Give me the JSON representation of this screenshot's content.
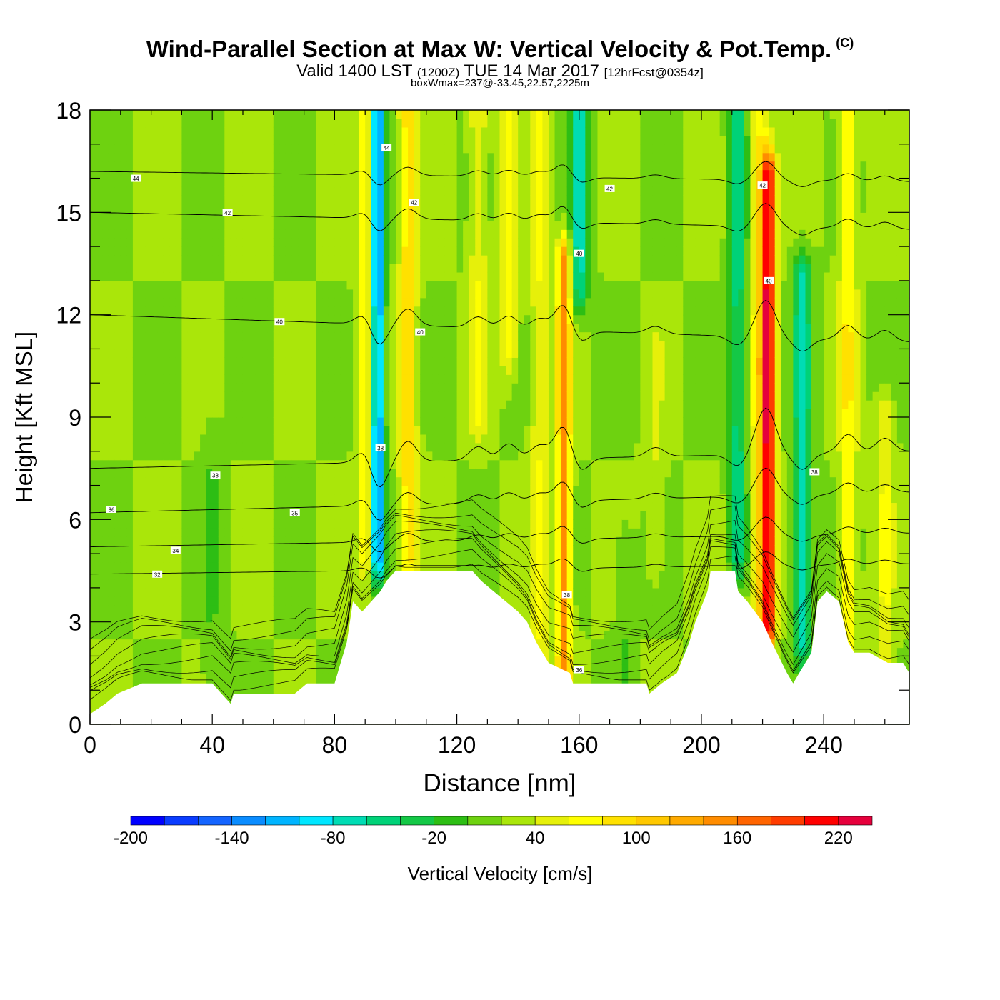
{
  "header": {
    "title": "Wind-Parallel Section at Max W: Vertical Velocity & Pot.Temp.",
    "copyright": "(C)",
    "subtitle_main": "Valid 1400 LST",
    "subtitle_utc": "(1200Z)",
    "subtitle_date": "TUE 14 Mar 2017",
    "subtitle_fcst": "[12hrFcst@0354z]",
    "note": "boxWmax=237@-33.45,22.57,2225m"
  },
  "colors": {
    "terrain": "#ffffff",
    "contour": "#000000",
    "frame": "#000000"
  },
  "chart_data": {
    "type": "heatmap",
    "title": "Wind-Parallel Section at Max W: Vertical Velocity & Pot.Temp.",
    "xlabel": "Distance [nm]",
    "ylabel": "Height [Kft MSL]",
    "xlim": [
      0,
      268
    ],
    "ylim": [
      0,
      18
    ],
    "x_ticks": [
      0,
      40,
      80,
      120,
      160,
      200,
      240
    ],
    "y_ticks": [
      0,
      3,
      6,
      9,
      12,
      15,
      18
    ],
    "background_w": 20,
    "bands": [
      {
        "x": 94,
        "w": -140,
        "zlow": 5.0,
        "zhigh": 18
      },
      {
        "x": 90.5,
        "w": 80,
        "zlow": 5.0,
        "zhigh": 18
      },
      {
        "x": 104,
        "w": 90,
        "zlow": 5.0,
        "zhigh": 18
      },
      {
        "x": 127,
        "w": 60,
        "zlow": 9.0,
        "zhigh": 18
      },
      {
        "x": 137,
        "w": 70,
        "zlow": 11.0,
        "zhigh": 18
      },
      {
        "x": 160,
        "w": -70,
        "zlow": 13.0,
        "zhigh": 18
      },
      {
        "x": 155,
        "w": 150,
        "zlow": 1.5,
        "zhigh": 13.5
      },
      {
        "x": 147,
        "w": 60,
        "zlow": 2.0,
        "zhigh": 18
      },
      {
        "x": 212,
        "w": -50,
        "zlow": 5.0,
        "zhigh": 18
      },
      {
        "x": 222,
        "w": 220,
        "zlow": 3.0,
        "zhigh": 16
      },
      {
        "x": 219,
        "w": 80,
        "zlow": 3.0,
        "zhigh": 18
      },
      {
        "x": 233,
        "w": -70,
        "zlow": 2.5,
        "zhigh": 13
      },
      {
        "x": 248,
        "w": 80,
        "zlow": 2.5,
        "zhigh": 18
      },
      {
        "x": 260,
        "w": 60,
        "zlow": 2.0,
        "zhigh": 9
      },
      {
        "x": 40,
        "w": 0,
        "zlow": 1.0,
        "zhigh": 8
      },
      {
        "x": 185,
        "w": 40,
        "zlow": 5.0,
        "zhigh": 11
      },
      {
        "x": 175,
        "w": 0,
        "zlow": 1.5,
        "zhigh": 5
      }
    ],
    "terrain": [
      [
        0,
        0.3
      ],
      [
        5,
        0.6
      ],
      [
        9,
        0.9
      ],
      [
        17,
        1.2
      ],
      [
        40,
        1.2
      ],
      [
        46,
        0.6
      ],
      [
        47,
        0.9
      ],
      [
        67,
        0.9
      ],
      [
        71,
        1.2
      ],
      [
        80,
        1.2
      ],
      [
        81,
        1.5
      ],
      [
        82,
        1.8
      ],
      [
        84,
        2.4
      ],
      [
        85,
        3.0
      ],
      [
        86,
        3.6
      ],
      [
        89,
        3.3
      ],
      [
        95,
        3.9
      ],
      [
        97,
        4.2
      ],
      [
        100,
        4.5
      ],
      [
        125,
        4.5
      ],
      [
        128,
        4.2
      ],
      [
        132,
        3.9
      ],
      [
        136,
        3.6
      ],
      [
        140,
        3.3
      ],
      [
        143,
        3.0
      ],
      [
        146,
        2.4
      ],
      [
        150,
        1.8
      ],
      [
        157,
        1.5
      ],
      [
        158,
        1.2
      ],
      [
        182,
        1.2
      ],
      [
        183,
        0.9
      ],
      [
        187,
        1.2
      ],
      [
        192,
        1.5
      ],
      [
        196,
        2.4
      ],
      [
        198,
        3.0
      ],
      [
        202,
        3.9
      ],
      [
        203,
        4.5
      ],
      [
        211,
        4.5
      ],
      [
        212,
        3.9
      ],
      [
        215,
        3.6
      ],
      [
        220,
        3.0
      ],
      [
        223,
        2.4
      ],
      [
        228,
        1.5
      ],
      [
        230,
        1.2
      ],
      [
        232,
        1.5
      ],
      [
        236,
        2.1
      ],
      [
        238,
        3.6
      ],
      [
        241,
        3.9
      ],
      [
        245,
        3.6
      ],
      [
        248,
        2.4
      ],
      [
        250,
        2.1
      ],
      [
        255,
        2.1
      ],
      [
        261,
        1.8
      ],
      [
        266,
        1.8
      ],
      [
        268,
        1.5
      ]
    ],
    "isentropes": [
      {
        "label": "44",
        "label_x": 15,
        "base": 16.2,
        "slope": -0.3,
        "bump": 0.4
      },
      {
        "label": "42",
        "label_x": 45,
        "base": 15.0,
        "slope": -0.5,
        "bump": 0.5
      },
      {
        "label": "40",
        "label_x": 62,
        "base": 12.0,
        "slope": -0.8,
        "bump": 0.8
      },
      {
        "label": "38",
        "label_x": 41,
        "base": 7.5,
        "slope": 0.5,
        "bump": 1.0
      },
      {
        "label": "36",
        "label_x": 7,
        "base": 6.2,
        "slope": 0.6,
        "bump": 0.6
      },
      {
        "label": "34",
        "label_x": 28,
        "base": 5.2,
        "slope": 0.4,
        "bump": 0.4
      },
      {
        "label": "32",
        "label_x": 22,
        "base": 4.4,
        "slope": 0.3,
        "bump": 0.3
      }
    ],
    "contour_labels": [
      {
        "text": "44",
        "x": 15,
        "y": 16.0
      },
      {
        "text": "42",
        "x": 45,
        "y": 15.0
      },
      {
        "text": "40",
        "x": 62,
        "y": 11.8
      },
      {
        "text": "38",
        "x": 41,
        "y": 7.3
      },
      {
        "text": "36",
        "x": 7,
        "y": 6.3
      },
      {
        "text": "34",
        "x": 28,
        "y": 5.1
      },
      {
        "text": "32",
        "x": 22,
        "y": 4.4
      },
      {
        "text": "35",
        "x": 67,
        "y": 6.2
      },
      {
        "text": "44",
        "x": 97,
        "y": 16.9
      },
      {
        "text": "42",
        "x": 106,
        "y": 15.3
      },
      {
        "text": "40",
        "x": 108,
        "y": 11.5
      },
      {
        "text": "38",
        "x": 95,
        "y": 8.1
      },
      {
        "text": "42",
        "x": 170,
        "y": 15.7
      },
      {
        "text": "40",
        "x": 160,
        "y": 13.8
      },
      {
        "text": "38",
        "x": 156,
        "y": 3.8
      },
      {
        "text": "36",
        "x": 160,
        "y": 1.6
      },
      {
        "text": "42",
        "x": 220,
        "y": 15.8
      },
      {
        "text": "40",
        "x": 222,
        "y": 13.0
      },
      {
        "text": "38",
        "x": 237,
        "y": 7.4
      }
    ],
    "colorbar": {
      "label": "Vertical Velocity [cm/s]",
      "levels": [
        -200,
        -180,
        -160,
        -140,
        -120,
        -100,
        -80,
        -60,
        -40,
        -20,
        0,
        20,
        40,
        60,
        80,
        100,
        120,
        140,
        160,
        180,
        200,
        220,
        240
      ],
      "colors": [
        "#0000ff",
        "#0a3cff",
        "#1464ff",
        "#0a8cff",
        "#00b4ff",
        "#00e6ff",
        "#00dcb4",
        "#00d278",
        "#14c846",
        "#2dbe14",
        "#6ed210",
        "#aae60a",
        "#e6f00a",
        "#ffff00",
        "#ffe100",
        "#ffc800",
        "#ffaa00",
        "#ff8c00",
        "#ff6400",
        "#ff3c00",
        "#ff0000",
        "#e6003c"
      ],
      "tick_labels": [
        "-200",
        "-140",
        "-80",
        "-20",
        "40",
        "100",
        "160",
        "220"
      ],
      "tick_values": [
        -200,
        -140,
        -80,
        -20,
        40,
        100,
        160,
        220
      ]
    }
  }
}
